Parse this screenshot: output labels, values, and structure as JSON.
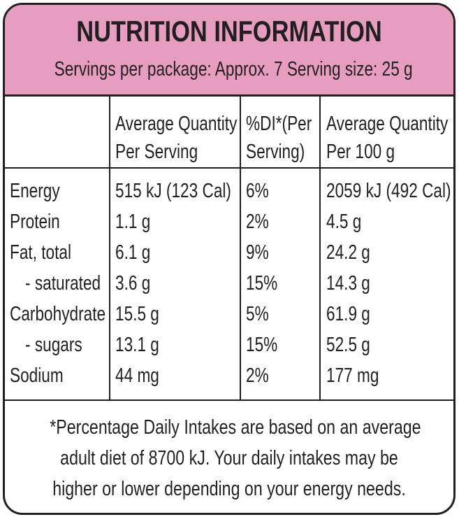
{
  "header": {
    "title": "NUTRITION INFORMATION",
    "subtitle": "Servings per package: Approx. 7  Serving size: 25 g"
  },
  "columns": {
    "per_serving_1": "Average Quantity",
    "per_serving_2": "Per Serving",
    "di_1": "%DI*(Per",
    "di_2": "Serving)",
    "per_100_1": "Average Quantity",
    "per_100_2": "Per 100 g"
  },
  "rows": [
    {
      "label": "Energy",
      "serving": "515 kJ (123 Cal)",
      "di": "6%",
      "per100": "2059 kJ (492 Cal)"
    },
    {
      "label": "Protein",
      "serving": "1.1 g",
      "di": "2%",
      "per100": "4.5 g"
    },
    {
      "label": "Fat, total",
      "serving": "6.1 g",
      "di": "9%",
      "per100": "24.2 g"
    },
    {
      "label": "- saturated",
      "serving": "3.6 g",
      "di": "15%",
      "per100": "14.3 g"
    },
    {
      "label": "Carbohydrate",
      "serving": "15.5 g",
      "di": "5%",
      "per100": "61.9 g"
    },
    {
      "label": "- sugars",
      "serving": "13.1 g",
      "di": "15%",
      "per100": "52.5 g"
    },
    {
      "label": "Sodium",
      "serving": "44 mg",
      "di": "2%",
      "per100": "177 mg"
    }
  ],
  "footnote": {
    "line1": "*Percentage Daily Intakes are based on an average",
    "line2": "adult diet of 8700 kJ. Your daily intakes may be",
    "line3": "higher or lower depending on your energy needs."
  },
  "colors": {
    "header_bg": "#e69dbf",
    "ink": "#231f20"
  }
}
